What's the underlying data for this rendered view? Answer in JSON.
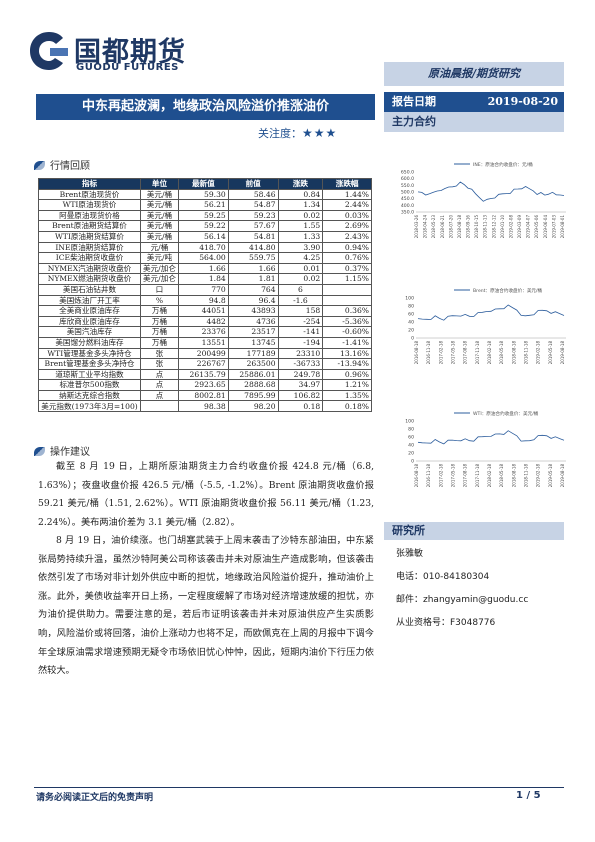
{
  "header": {
    "brand_cn": "国都期货",
    "brand_en": "GUODU FUTURES",
    "report_type": "原油晨报/期货研究"
  },
  "report": {
    "title": "中东再起波澜，地缘政治风险溢价推涨油价",
    "focus_label": "关注度：",
    "focus_stars": "★★★",
    "date_label": "报告日期",
    "date_value": "2019-08-20",
    "main_contract_label": "主力合约"
  },
  "sections": {
    "review": "行情回顾",
    "advice": "操作建议"
  },
  "table": {
    "headers": [
      "指标",
      "单位",
      "最新值",
      "前值",
      "涨跌",
      "涨跌幅"
    ],
    "rows": [
      [
        "Brent原油现货价",
        "美元/桶",
        "59.30",
        "58.46",
        "0.84",
        "1.44%"
      ],
      [
        "WTI原油现货价",
        "美元/桶",
        "56.21",
        "54.87",
        "1.34",
        "2.44%"
      ],
      [
        "阿曼原油现货价格",
        "美元/桶",
        "59.25",
        "59.23",
        "0.02",
        "0.03%"
      ],
      [
        "Brent原油期货结算价",
        "美元/桶",
        "59.22",
        "57.67",
        "1.55",
        "2.69%"
      ],
      [
        "WTI原油期货结算价",
        "美元/桶",
        "56.14",
        "54.81",
        "1.33",
        "2.43%"
      ],
      [
        "INE原油期货结算价",
        "元/桶",
        "418.70",
        "414.80",
        "3.90",
        "0.94%"
      ],
      [
        "ICE柴油期货收盘价",
        "美元/吨",
        "564.00",
        "559.75",
        "4.25",
        "0.76%"
      ],
      [
        "NYMEX汽油期货收盘价",
        "美元/加仑",
        "1.66",
        "1.66",
        "0.01",
        "0.37%"
      ],
      [
        "NYMEX燃油期货收盘价",
        "美元/加仑",
        "1.84",
        "1.81",
        "0.02",
        "1.15%"
      ],
      [
        "美国石油钻井数",
        "口",
        "770",
        "764",
        "6",
        ""
      ],
      [
        "美国炼油厂开工率",
        "%",
        "94.8",
        "96.4",
        "-1.6",
        ""
      ],
      [
        "全美商业原油库存",
        "万桶",
        "44051",
        "43893",
        "158",
        "0.36%"
      ],
      [
        "库欣商业原油库存",
        "万桶",
        "4482",
        "4736",
        "-254",
        "-5.36%"
      ],
      [
        "美国汽油库存",
        "万桶",
        "23376",
        "23517",
        "-141",
        "-0.60%"
      ],
      [
        "美国馏分燃料油库存",
        "万桶",
        "13551",
        "13745",
        "-194",
        "-1.41%"
      ],
      [
        "WTI管理基金多头净持仓",
        "张",
        "200499",
        "177189",
        "23310",
        "13.16%"
      ],
      [
        "Brent管理基金多头净持仓",
        "张",
        "226767",
        "263500",
        "-36733",
        "-13.94%"
      ],
      [
        "道琼斯工业平均指数",
        "点",
        "26135.79",
        "25886.01",
        "249.78",
        "0.96%"
      ],
      [
        "标准普尔500指数",
        "点",
        "2923.65",
        "2888.68",
        "34.97",
        "1.21%"
      ],
      [
        "纳斯达克综合指数",
        "点",
        "8002.81",
        "7895.99",
        "106.82",
        "1.35%"
      ],
      [
        "美元指数(1973年3月=100)",
        "",
        "98.38",
        "98.20",
        "0.18",
        "0.18%"
      ]
    ]
  },
  "paragraphs": {
    "p1": "截至 8 月 19 日，上期所原油期货主力合约收盘价报 424.8 元/桶（6.8, 1.63%）；夜盘收盘价报 426.5 元/桶（-5.5, -1.2%）。Brent 原油期货收盘价报 59.21 美元/桶（1.51, 2.62%）。WTI 原油期货收盘价报 56.11 美元/桶（1.23, 2.24%）。美布两油价差为 3.1 美元/桶（2.82）。",
    "p2": "8 月 19 日，油价续涨。也门胡塞武装于上周末袭击了沙特东部油田，中东紧张局势持续升温，虽然沙特阿美公司称该袭击并未对原油生产造成影响，但该袭击依然引发了市场对非计划外供应中断的担忧，地缘政治风险溢价提升，推动油价上涨。此外，美债收益率开日上扬，一定程度缓解了市场对经济增速放缓的担忧，亦为油价提供助力。需要注意的是，若后市证明该袭击并未对原油供应产生实质影响，风险溢价或将回落，油价上涨动力也将不足，而欧佩克在上周的月报中下调今年全球原油需求增速预期无疑令市场依旧忧心忡忡，因此，短期内油价下行压力依然较大。"
  },
  "charts": [
    {
      "legend": "INE：原油合约收盘价：元/桶",
      "y_ticks": [
        "650.0",
        "600.0",
        "550.0",
        "500.0",
        "450.0",
        "400.0",
        "350.0"
      ],
      "x_ticks": [
        "2018-03-26",
        "2018-04-24",
        "2018-05-23",
        "2018-06-21",
        "2018-07-20",
        "2018-08-18",
        "2018-09-16",
        "2018-10-15",
        "2018-11-13",
        "2018-12-12",
        "2019-01-10",
        "2019-02-08",
        "2019-03-09",
        "2019-04-07",
        "2019-05-06",
        "2019-06-04",
        "2019-07-03",
        "2019-08-01"
      ]
    },
    {
      "legend": "Brent：原油合约收盘价：美元/桶",
      "y_ticks": [
        "100",
        "80",
        "60",
        "40",
        "20",
        "0"
      ],
      "x_ticks": [
        "2016-08-18",
        "2016-11-18",
        "2017-02-18",
        "2017-05-18",
        "2017-08-18",
        "2017-11-18",
        "2018-02-18",
        "2018-05-18",
        "2018-08-18",
        "2018-11-18",
        "2019-02-18",
        "2019-05-18",
        "2019-08-18"
      ]
    },
    {
      "legend": "WTI：原油合约收盘价：美元/桶",
      "y_ticks": [
        "100",
        "80",
        "60",
        "40",
        "20",
        "0"
      ],
      "x_ticks": [
        "2016-08-18",
        "2016-11-18",
        "2017-02-18",
        "2017-05-18",
        "2017-08-18",
        "2017-11-18",
        "2018-02-18",
        "2018-05-18",
        "2018-08-18",
        "2018-11-18",
        "2019-02-18",
        "2019-05-18",
        "2019-08-18"
      ]
    }
  ],
  "researcher": {
    "title": "研究所",
    "name": "张雅敏",
    "phone": "电话：010-84180304",
    "email": "邮件：zhangyamin@guodu.cc",
    "cert": "从业资格号：F3048776"
  },
  "footer": {
    "note": "请务必阅读正文后的免责声明",
    "page": "1 / 5"
  },
  "colors": {
    "brand": "#1f3864",
    "title_bar": "#1f4f8f",
    "light_bar": "#c7d3e5"
  }
}
